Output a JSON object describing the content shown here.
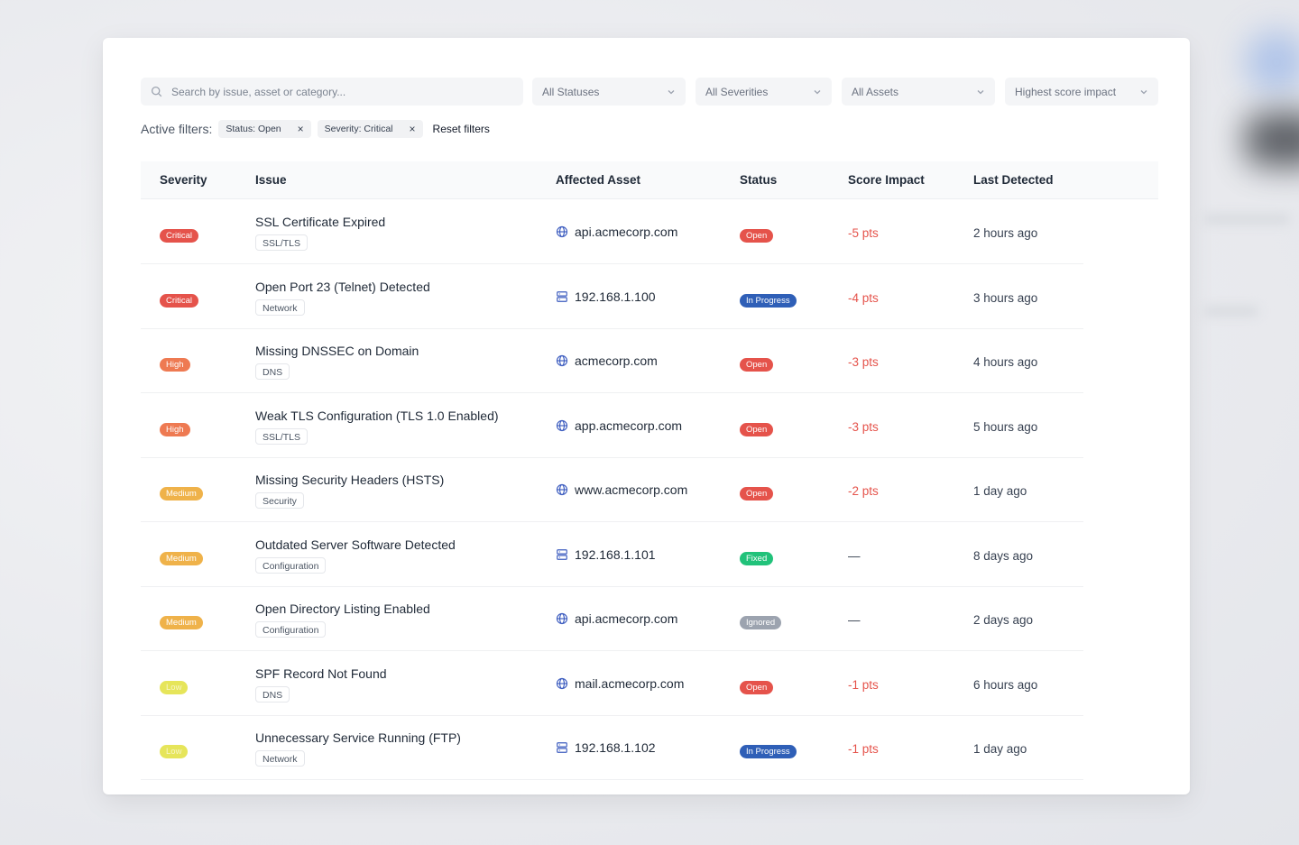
{
  "search": {
    "placeholder": "Search by issue, asset or category..."
  },
  "filter_selects": [
    {
      "label": "All Statuses"
    },
    {
      "label": "All Severities"
    },
    {
      "label": "All Assets"
    },
    {
      "label": "Highest score impact"
    }
  ],
  "active_filters": {
    "label": "Active filters:",
    "chips": [
      {
        "label": "Status: Open"
      },
      {
        "label": "Severity: Critical"
      }
    ],
    "remove_glyph": "×",
    "reset_label": "Reset filters"
  },
  "table": {
    "headers": {
      "severity": "Severity",
      "issue": "Issue",
      "asset": "Affected Asset",
      "status": "Status",
      "score": "Score Impact",
      "detected": "Last Detected"
    },
    "rows": [
      {
        "severity": "Critical",
        "title": "SSL Certificate Expired",
        "category": "SSL/TLS",
        "asset_icon": "globe-icon",
        "asset": "api.acmecorp.com",
        "status": "Open",
        "score": "-5 pts",
        "detected": "2 hours ago"
      },
      {
        "severity": "Critical",
        "title": "Open Port 23 (Telnet) Detected",
        "category": "Network",
        "asset_icon": "server-icon",
        "asset": "192.168.1.100",
        "status": "In Progress",
        "score": "-4 pts",
        "detected": "3 hours ago"
      },
      {
        "severity": "High",
        "title": "Missing DNSSEC on Domain",
        "category": "DNS",
        "asset_icon": "globe-icon",
        "asset": "acmecorp.com",
        "status": "Open",
        "score": "-3 pts",
        "detected": "4 hours ago"
      },
      {
        "severity": "High",
        "title": "Weak TLS Configuration (TLS 1.0 Enabled)",
        "category": "SSL/TLS",
        "asset_icon": "globe-icon",
        "asset": "app.acmecorp.com",
        "status": "Open",
        "score": "-3 pts",
        "detected": "5 hours ago"
      },
      {
        "severity": "Medium",
        "title": "Missing Security Headers (HSTS)",
        "category": "Security",
        "asset_icon": "globe-icon",
        "asset": "www.acmecorp.com",
        "status": "Open",
        "score": "-2 pts",
        "detected": "1 day ago"
      },
      {
        "severity": "Medium",
        "title": "Outdated Server Software Detected",
        "category": "Configuration",
        "asset_icon": "server-icon",
        "asset": "192.168.1.101",
        "status": "Fixed",
        "score": "—",
        "detected": "8 days ago"
      },
      {
        "severity": "Medium",
        "title": "Open Directory Listing Enabled",
        "category": "Configuration",
        "asset_icon": "globe-icon",
        "asset": "api.acmecorp.com",
        "status": "Ignored",
        "score": "—",
        "detected": "2 days ago"
      },
      {
        "severity": "Low",
        "title": "SPF Record Not Found",
        "category": "DNS",
        "asset_icon": "globe-icon",
        "asset": "mail.acmecorp.com",
        "status": "Open",
        "score": "-1 pts",
        "detected": "6 hours ago"
      },
      {
        "severity": "Low",
        "title": "Unnecessary Service Running (FTP)",
        "category": "Network",
        "asset_icon": "server-icon",
        "asset": "192.168.1.102",
        "status": "In Progress",
        "score": "-1 pts",
        "detected": "1 day ago"
      }
    ]
  },
  "colors": {
    "severity": {
      "Critical": "#e5534b",
      "High": "#ee7a52",
      "Medium": "#efb24a",
      "Low": "#e6e55a"
    },
    "status": {
      "Open": "#e5534b",
      "In Progress": "#2f5fb7",
      "Fixed": "#21c27a",
      "Ignored": "#9ca3af"
    },
    "score_negative": "#e5534b"
  }
}
